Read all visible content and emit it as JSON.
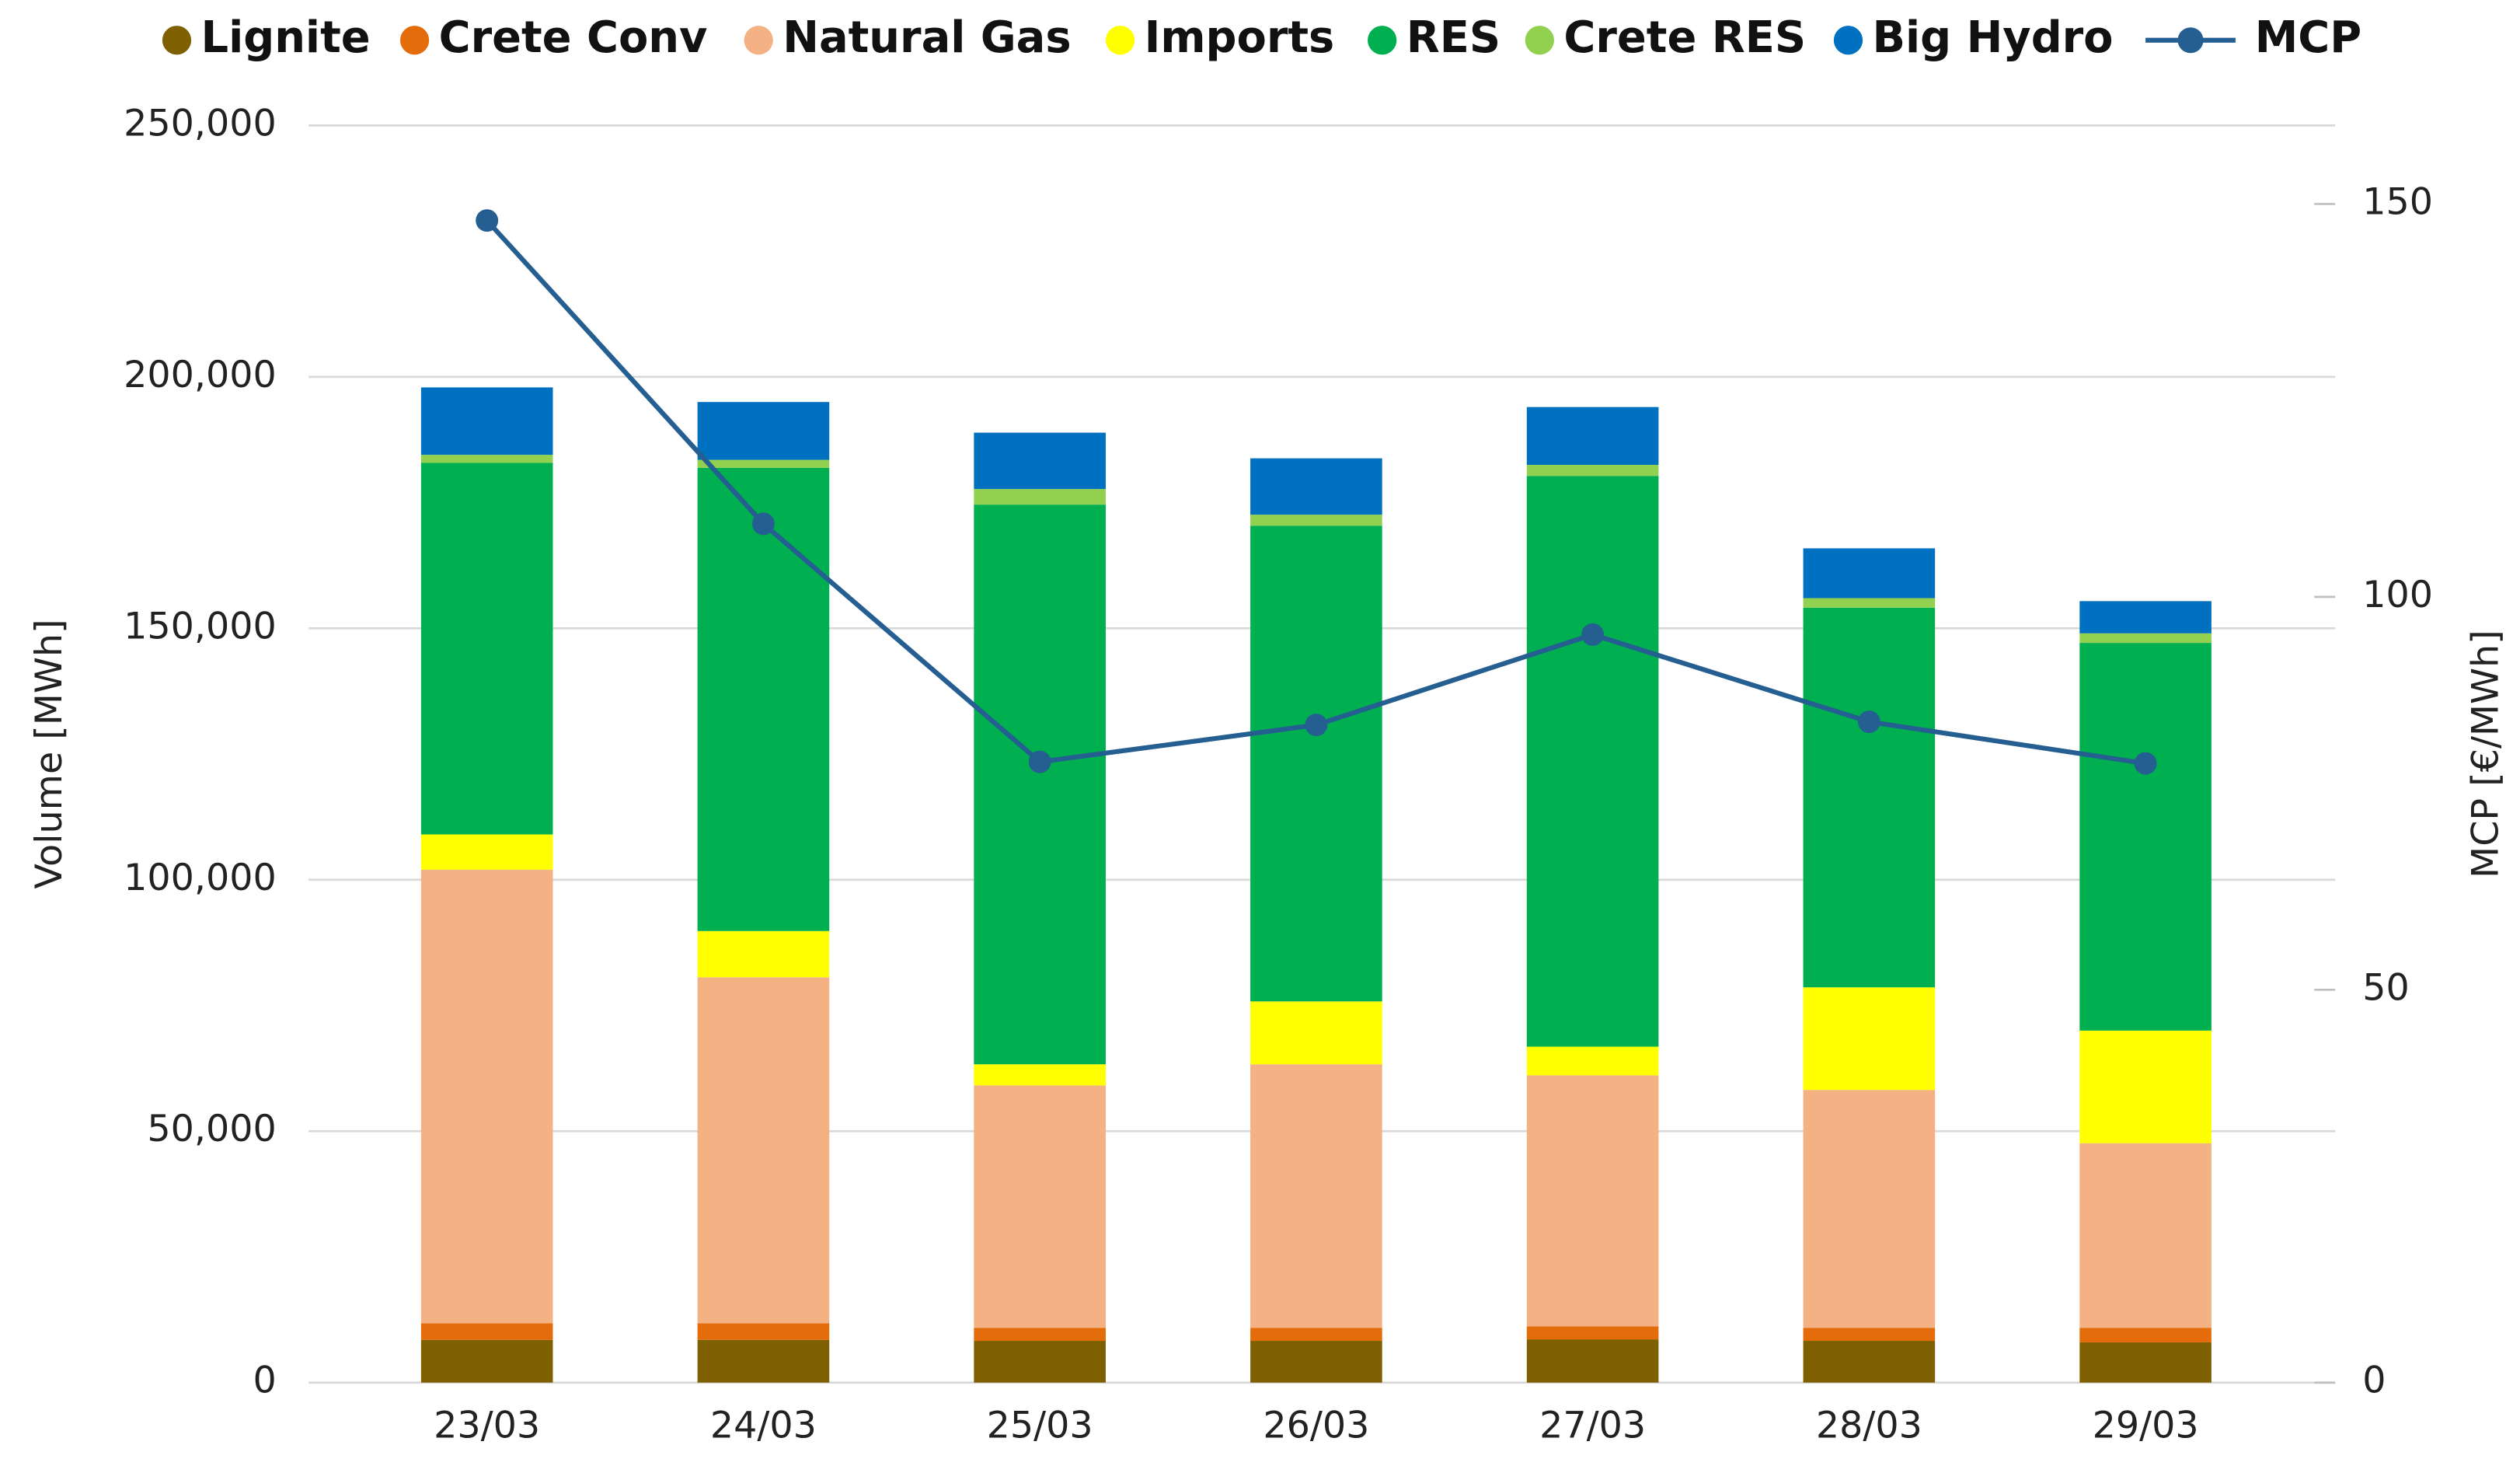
{
  "chart_data": {
    "type": "bar",
    "categories": [
      "23/03",
      "24/03",
      "25/03",
      "26/03",
      "27/03",
      "28/03",
      "29/03"
    ],
    "ylabel": "Volume [MWh]",
    "y2label": "MCP [€/MWh]",
    "ylim": [
      0,
      250000
    ],
    "yticks": [
      0,
      {
        "value": 50000,
        "label": "50,000"
      },
      {
        "value": 100000,
        "label": "100,000"
      },
      {
        "value": 150000,
        "label": "150,000"
      },
      {
        "value": 200000,
        "label": "200,000"
      },
      {
        "value": 250000,
        "label": "250,000"
      }
    ],
    "y2lim": [
      0,
      160
    ],
    "y2ticks": [
      0,
      50,
      100,
      150
    ],
    "grid": true,
    "legend": "top",
    "series": [
      {
        "name": "Lignite",
        "color": "#7f6000",
        "values": [
          8500,
          8500,
          8300,
          8300,
          8600,
          8300,
          8000
        ]
      },
      {
        "name": "Crete Conv",
        "color": "#e46c0a",
        "values": [
          3300,
          3300,
          2600,
          2600,
          2600,
          2600,
          2900
        ]
      },
      {
        "name": "Natural Gas",
        "color": "#f4b183",
        "values": [
          90200,
          68800,
          48200,
          52400,
          49900,
          47300,
          36700
        ]
      },
      {
        "name": "Imports",
        "color": "#ffff00",
        "values": [
          7000,
          9200,
          4200,
          12500,
          5700,
          20400,
          22400
        ]
      },
      {
        "name": "RES",
        "color": "#00b050",
        "values": [
          73900,
          92100,
          111300,
          94600,
          113500,
          75500,
          77100
        ]
      },
      {
        "name": "Crete RES",
        "color": "#92d050",
        "values": [
          1600,
          1600,
          3100,
          2200,
          2200,
          1900,
          1900
        ]
      },
      {
        "name": "Big Hydro",
        "color": "#0070c0",
        "values": [
          13400,
          11500,
          11200,
          11200,
          11500,
          9900,
          6400
        ]
      },
      {
        "name": "MCP",
        "color": "#255e91",
        "type": "line",
        "axis": "y2",
        "values": [
          147.9,
          109.3,
          79.0,
          83.7,
          95.2,
          84.1,
          78.8
        ]
      }
    ]
  }
}
